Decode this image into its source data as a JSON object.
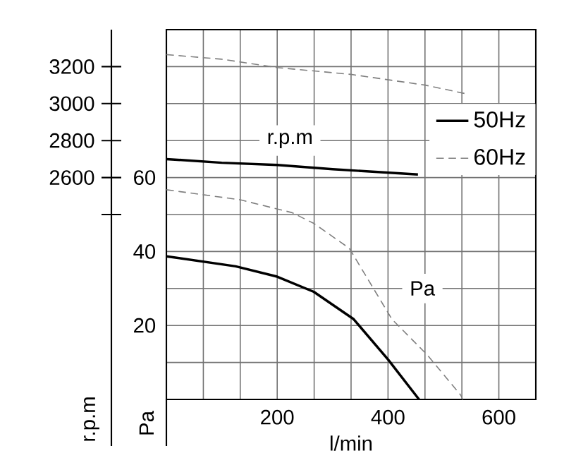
{
  "chart_data": {
    "type": "line",
    "xlabel": "l/min",
    "ylabel": "Pa",
    "y2label": "r.p.m",
    "xlim": [
      0,
      666.7
    ],
    "xticks": [
      {
        "value": 66.7,
        "label": null
      },
      {
        "value": 133.3,
        "label": null
      },
      200,
      {
        "value": 266.7,
        "label": null
      },
      {
        "value": 333.3,
        "label": null
      },
      400,
      {
        "value": 466.7,
        "label": null
      },
      {
        "value": 533.3,
        "label": null
      },
      600
    ],
    "ylim": [
      0,
      100
    ],
    "yticks": [
      {
        "value": 10,
        "label": null
      },
      20,
      {
        "value": 30,
        "label": null
      },
      40,
      {
        "value": 50,
        "label": null
      },
      60,
      {
        "value": 70,
        "label": null
      },
      {
        "value": 80,
        "label": null
      },
      {
        "value": 90,
        "label": null
      }
    ],
    "y2lim": [
      1400,
      3400
    ],
    "y2ticks": [
      {
        "value": 2400,
        "label": null
      },
      2600,
      2800,
      3000,
      3200
    ],
    "grid": true,
    "legend": "top right",
    "marker": "none",
    "series": [
      {
        "name": "50Hz",
        "color": "#000000",
        "axis": "y2",
        "line_style": "solid",
        "x": [
          0,
          100,
          200,
          300,
          454
        ],
        "values": [
          2700,
          2680,
          2668,
          2645,
          2617
        ]
      },
      {
        "name": "60Hz",
        "color": "#808080",
        "axis": "y2",
        "line_style": "dashed",
        "x": [
          0,
          100,
          200,
          333,
          467,
          538
        ],
        "values": [
          3265,
          3240,
          3195,
          3158,
          3100,
          3055
        ]
      },
      {
        "color": "#000000",
        "line_style": "solid",
        "x": [
          0,
          125,
          200,
          266,
          338,
          400,
          456
        ],
        "values": [
          38.7,
          36.0,
          33.2,
          29.1,
          21.7,
          10.8,
          0
        ]
      },
      {
        "color": "#808080",
        "line_style": "dashed",
        "x": [
          0,
          133,
          227,
          266,
          330,
          407,
          471,
          531,
          535
        ],
        "values": [
          56.7,
          54.0,
          50.5,
          47.6,
          40.9,
          21.7,
          12.0,
          1.2,
          0
        ]
      }
    ],
    "annotations": [
      {
        "text": "r.p.m",
        "x": 223,
        "y": 70
      },
      {
        "text": "Pa",
        "x": 462,
        "y": 30
      }
    ]
  }
}
